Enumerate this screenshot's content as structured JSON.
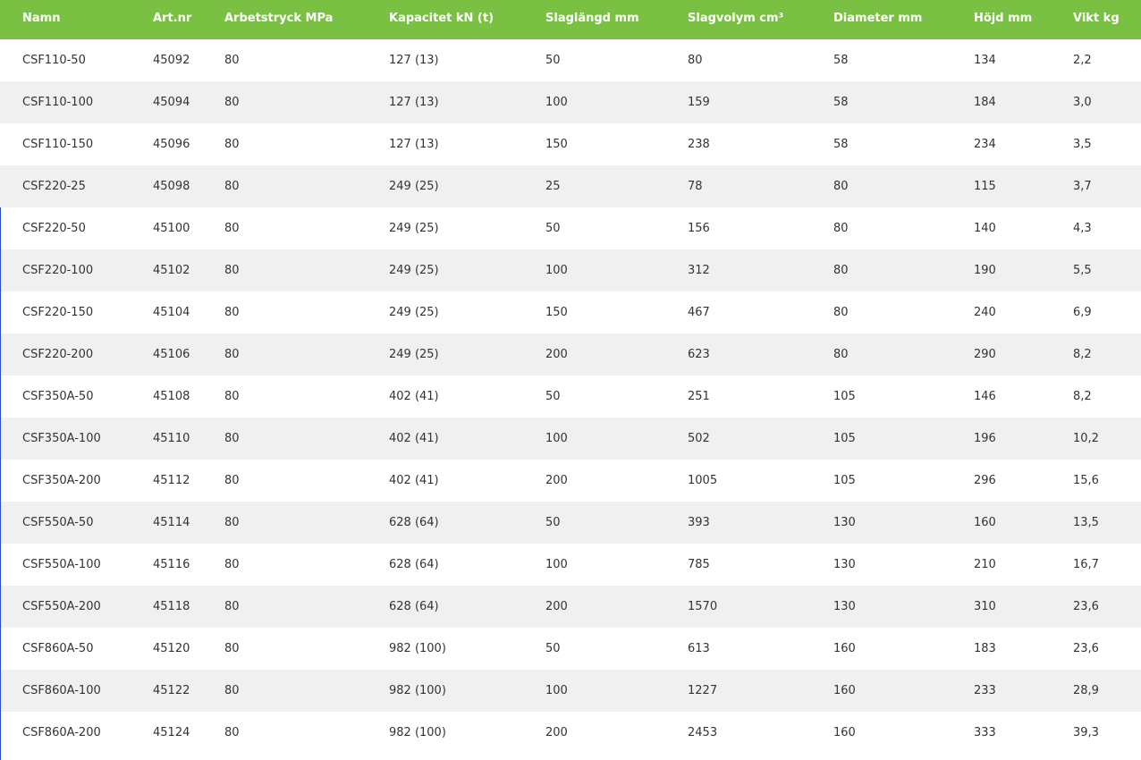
{
  "colors": {
    "header_bg": "#7ac143",
    "stripe": "#f0f0f0"
  },
  "columns": [
    "Namn",
    "Art.nr",
    "Arbetstryck MPa",
    "Kapacitet kN (t)",
    "Slaglängd mm",
    "Slagvolym cm³",
    "Diameter mm",
    "Höjd mm",
    "Vikt kg"
  ],
  "rows": [
    [
      "CSF110-50",
      "45092",
      "80",
      "127 (13)",
      "50",
      "80",
      "58",
      "134",
      "2,2"
    ],
    [
      "CSF110-100",
      "45094",
      "80",
      "127 (13)",
      "100",
      "159",
      "58",
      "184",
      "3,0"
    ],
    [
      "CSF110-150",
      "45096",
      "80",
      "127 (13)",
      "150",
      "238",
      "58",
      "234",
      "3,5"
    ],
    [
      "CSF220-25",
      "45098",
      "80",
      "249 (25)",
      "25",
      "78",
      "80",
      "115",
      "3,7"
    ],
    [
      "CSF220-50",
      "45100",
      "80",
      "249 (25)",
      "50",
      "156",
      "80",
      "140",
      "4,3"
    ],
    [
      "CSF220-100",
      "45102",
      "80",
      "249 (25)",
      "100",
      "312",
      "80",
      "190",
      "5,5"
    ],
    [
      "CSF220-150",
      "45104",
      "80",
      "249 (25)",
      "150",
      "467",
      "80",
      "240",
      "6,9"
    ],
    [
      "CSF220-200",
      "45106",
      "80",
      "249 (25)",
      "200",
      "623",
      "80",
      "290",
      "8,2"
    ],
    [
      "CSF350A-50",
      "45108",
      "80",
      "402 (41)",
      "50",
      "251",
      "105",
      "146",
      "8,2"
    ],
    [
      "CSF350A-100",
      "45110",
      "80",
      "402 (41)",
      "100",
      "502",
      "105",
      "196",
      "10,2"
    ],
    [
      "CSF350A-200",
      "45112",
      "80",
      "402 (41)",
      "200",
      "1005",
      "105",
      "296",
      "15,6"
    ],
    [
      "CSF550A-50",
      "45114",
      "80",
      "628 (64)",
      "50",
      "393",
      "130",
      "160",
      "13,5"
    ],
    [
      "CSF550A-100",
      "45116",
      "80",
      "628 (64)",
      "100",
      "785",
      "130",
      "210",
      "16,7"
    ],
    [
      "CSF550A-200",
      "45118",
      "80",
      "628 (64)",
      "200",
      "1570",
      "130",
      "310",
      "23,6"
    ],
    [
      "CSF860A-50",
      "45120",
      "80",
      "982 (100)",
      "50",
      "613",
      "160",
      "183",
      "23,6"
    ],
    [
      "CSF860A-100",
      "45122",
      "80",
      "982 (100)",
      "100",
      "1227",
      "160",
      "233",
      "28,9"
    ],
    [
      "CSF860A-200",
      "45124",
      "80",
      "982 (100)",
      "200",
      "2453",
      "160",
      "333",
      "39,3"
    ]
  ]
}
